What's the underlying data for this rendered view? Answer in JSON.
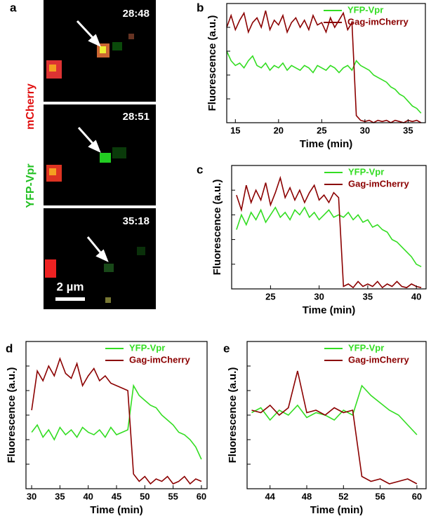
{
  "figure": {
    "panel_label": "a",
    "stamps": [
      "28:48",
      "28:51",
      "35:18"
    ],
    "channel_labels": [
      "mCherry",
      "YFP-Vpr"
    ],
    "scale_bar": "2 µm"
  },
  "chart_data": [
    {
      "type": "line",
      "label": "b",
      "xlabel": "Time (min)",
      "ylabel": "Fluorescence (a.u.)",
      "x": [
        14,
        14.5,
        15,
        15.5,
        16,
        16.5,
        17,
        17.5,
        18,
        18.5,
        19,
        19.5,
        20,
        20.5,
        21,
        21.5,
        22,
        22.5,
        23,
        23.5,
        24,
        24.5,
        25,
        25.5,
        26,
        26.5,
        27,
        27.5,
        28,
        28.5,
        29,
        29.5,
        30,
        30.5,
        31,
        31.5,
        32,
        32.5,
        33,
        33.5,
        34,
        34.5,
        35,
        35.5,
        36,
        36.5
      ],
      "series": [
        {
          "name": "YFP-Vpr",
          "color": "#33dd22",
          "values": [
            3.0,
            2.6,
            2.4,
            2.5,
            2.3,
            2.6,
            2.8,
            2.4,
            2.3,
            2.5,
            2.2,
            2.4,
            2.3,
            2.5,
            2.2,
            2.4,
            2.3,
            2.2,
            2.4,
            2.3,
            2.1,
            2.4,
            2.3,
            2.2,
            2.4,
            2.3,
            2.1,
            2.3,
            2.4,
            2.2,
            2.6,
            2.4,
            2.3,
            2.2,
            2.0,
            1.9,
            1.8,
            1.7,
            1.5,
            1.4,
            1.2,
            1.1,
            0.9,
            0.7,
            0.6,
            0.4
          ]
        },
        {
          "name": "Gag-imCherry",
          "color": "#8b0000",
          "values": [
            4.0,
            4.5,
            3.9,
            4.3,
            4.6,
            3.8,
            4.2,
            4.4,
            4.0,
            4.7,
            3.9,
            4.3,
            4.1,
            4.5,
            3.8,
            4.2,
            4.4,
            4.0,
            4.3,
            3.9,
            4.5,
            4.1,
            4.2,
            3.8,
            4.4,
            4.0,
            4.3,
            4.6,
            3.9,
            4.2,
            0.3,
            0.1,
            0.05,
            0.1,
            0.0,
            0.1,
            0.05,
            0.1,
            0.0,
            0.1,
            0.05,
            0.0,
            0.1,
            0.05,
            0.1,
            0.0
          ]
        }
      ],
      "xlim": [
        14,
        37
      ],
      "xticks": [
        15,
        20,
        25,
        30,
        35
      ],
      "ylim": [
        0,
        5
      ],
      "yticks": [
        1,
        2,
        3,
        4
      ],
      "ytick_labels": false
    },
    {
      "type": "line",
      "label": "c",
      "xlabel": "Time (min)",
      "ylabel": "Fluorescence (a.u.)",
      "x": [
        21.5,
        22,
        22.5,
        23,
        23.5,
        24,
        24.5,
        25,
        25.5,
        26,
        26.5,
        27,
        27.5,
        28,
        28.5,
        29,
        29.5,
        30,
        30.5,
        31,
        31.5,
        32,
        32.5,
        33,
        33.5,
        34,
        34.5,
        35,
        35.5,
        36,
        36.5,
        37,
        37.5,
        38,
        38.5,
        39,
        39.5,
        40,
        40.5
      ],
      "series": [
        {
          "name": "YFP-Vpr",
          "color": "#33dd22",
          "values": [
            2.4,
            3.0,
            2.6,
            3.1,
            2.8,
            3.2,
            2.7,
            3.0,
            3.3,
            2.9,
            3.1,
            2.8,
            3.2,
            3.0,
            3.3,
            2.9,
            3.1,
            2.8,
            3.0,
            3.2,
            2.9,
            3.0,
            2.9,
            3.1,
            2.8,
            3.0,
            2.7,
            2.8,
            2.5,
            2.6,
            2.4,
            2.3,
            2.0,
            1.9,
            1.7,
            1.5,
            1.3,
            1.0,
            0.9
          ]
        },
        {
          "name": "Gag-imCherry",
          "color": "#8b0000",
          "values": [
            3.8,
            3.2,
            4.2,
            3.5,
            4.0,
            3.6,
            4.3,
            3.4,
            3.9,
            4.5,
            3.7,
            4.1,
            3.6,
            4.0,
            3.5,
            3.9,
            4.2,
            3.6,
            3.8,
            3.5,
            3.9,
            3.7,
            0.1,
            0.2,
            0.05,
            0.3,
            0.1,
            0.2,
            0.1,
            0.3,
            0.05,
            0.2,
            0.1,
            0.3,
            0.1,
            0.05,
            0.2,
            0.1,
            0.05
          ]
        }
      ],
      "xlim": [
        21,
        41
      ],
      "xticks": [
        25,
        30,
        35,
        40
      ],
      "ylim": [
        0,
        5
      ],
      "yticks": [
        1,
        2,
        3,
        4
      ],
      "ytick_labels": false
    },
    {
      "type": "line",
      "label": "d",
      "xlabel": "Time (min)",
      "ylabel": "Fluorescence (a.u.)",
      "x": [
        30,
        31,
        32,
        33,
        34,
        35,
        36,
        37,
        38,
        39,
        40,
        41,
        42,
        43,
        44,
        45,
        46,
        47,
        48,
        49,
        50,
        51,
        52,
        53,
        54,
        55,
        56,
        57,
        58,
        59,
        60
      ],
      "series": [
        {
          "name": "YFP-Vpr",
          "color": "#33dd22",
          "values": [
            2.3,
            2.6,
            2.1,
            2.4,
            2.0,
            2.5,
            2.2,
            2.4,
            2.1,
            2.5,
            2.3,
            2.2,
            2.4,
            2.1,
            2.5,
            2.2,
            2.3,
            2.4,
            4.2,
            3.8,
            3.6,
            3.4,
            3.3,
            3.0,
            2.8,
            2.6,
            2.3,
            2.2,
            2.0,
            1.7,
            1.2
          ]
        },
        {
          "name": "Gag-imCherry",
          "color": "#8b0000",
          "values": [
            3.2,
            4.8,
            4.4,
            5.0,
            4.6,
            5.3,
            4.7,
            4.5,
            5.1,
            4.2,
            4.6,
            4.9,
            4.4,
            4.6,
            4.3,
            4.2,
            4.1,
            4.0,
            0.6,
            0.3,
            0.5,
            0.2,
            0.4,
            0.3,
            0.5,
            0.2,
            0.3,
            0.5,
            0.2,
            0.4,
            0.3
          ]
        }
      ],
      "xlim": [
        29,
        61
      ],
      "xticks": [
        30,
        35,
        40,
        45,
        50,
        55,
        60
      ],
      "ylim": [
        0,
        6
      ],
      "yticks": [
        1,
        2,
        3,
        4,
        5
      ],
      "ytick_labels": false
    },
    {
      "type": "line",
      "label": "e",
      "xlabel": "Time (min)",
      "ylabel": "Fluorescence (a.u.)",
      "x": [
        42,
        43,
        44,
        45,
        46,
        47,
        48,
        49,
        50,
        51,
        52,
        53,
        54,
        55,
        56,
        57,
        58,
        59,
        60
      ],
      "series": [
        {
          "name": "YFP-Vpr",
          "color": "#33dd22",
          "values": [
            3.1,
            3.3,
            2.8,
            3.2,
            3.0,
            3.4,
            2.9,
            3.1,
            3.0,
            2.8,
            3.2,
            3.0,
            4.2,
            3.8,
            3.5,
            3.2,
            3.0,
            2.6,
            2.2
          ]
        },
        {
          "name": "Gag-imCherry",
          "color": "#8b0000",
          "values": [
            3.2,
            3.1,
            3.4,
            3.0,
            3.3,
            4.8,
            3.1,
            3.2,
            3.0,
            3.3,
            3.1,
            3.2,
            0.5,
            0.3,
            0.4,
            0.2,
            0.3,
            0.4,
            0.2
          ]
        }
      ],
      "xlim": [
        41.5,
        61
      ],
      "xticks": [
        44,
        48,
        52,
        56,
        60
      ],
      "ylim": [
        0,
        6
      ],
      "yticks": [
        1,
        2,
        3,
        4,
        5
      ],
      "ytick_labels": false
    }
  ]
}
